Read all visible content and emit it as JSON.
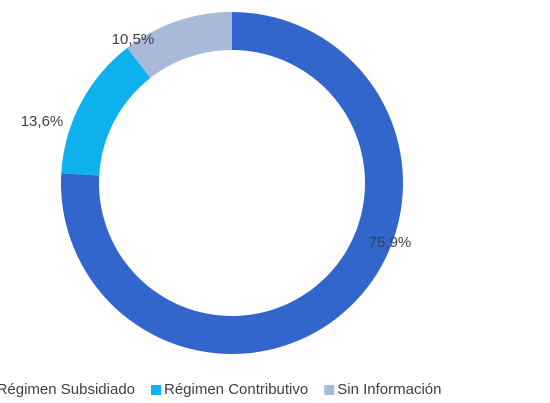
{
  "chart_data": {
    "type": "donut",
    "categories": [
      "Régimen Subsidiado",
      "Régimen Contributivo",
      "Sin Información"
    ],
    "values": [
      75.9,
      13.6,
      10.5
    ],
    "value_labels": [
      "75,9%",
      "13,6%",
      "10,5%"
    ],
    "colors": [
      "#3366cc",
      "#0fb0ee",
      "#a9b9d9"
    ],
    "legend": "bottom"
  }
}
